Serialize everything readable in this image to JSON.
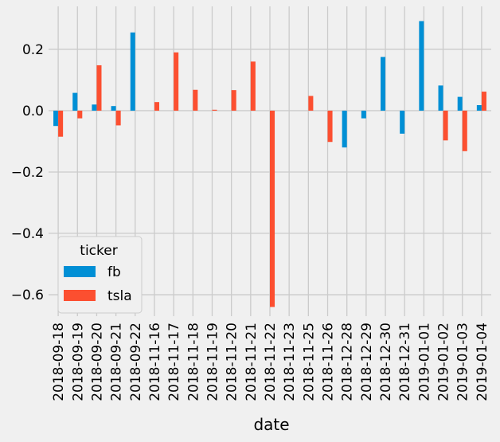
{
  "chart_data": {
    "type": "bar",
    "xlabel": "date",
    "ylabel": "",
    "ylim": [
      -0.67,
      0.34
    ],
    "yticks": [
      0.2,
      0.0,
      -0.2,
      -0.4,
      -0.6
    ],
    "ytick_labels": [
      "0.2",
      "0.0",
      "−0.2",
      "−0.4",
      "−0.6"
    ],
    "grid": true,
    "legend": {
      "title": "ticker",
      "placement": "lower-left"
    },
    "categories": [
      "2018-09-18",
      "2018-09-19",
      "2018-09-20",
      "2018-09-21",
      "2018-09-22",
      "2018-11-16",
      "2018-11-17",
      "2018-11-18",
      "2018-11-19",
      "2018-11-20",
      "2018-11-21",
      "2018-11-22",
      "2018-11-23",
      "2018-11-25",
      "2018-11-26",
      "2018-12-28",
      "2018-12-29",
      "2018-12-30",
      "2018-12-31",
      "2019-01-01",
      "2019-01-02",
      "2019-01-03",
      "2019-01-04"
    ],
    "series": [
      {
        "name": "fb",
        "color": "#008fd5",
        "values": [
          -0.05,
          0.058,
          0.02,
          0.015,
          0.255,
          0,
          0,
          0,
          0,
          0,
          0,
          0,
          0,
          0,
          0,
          -0.12,
          -0.025,
          0.175,
          -0.075,
          0.292,
          0.082,
          0.045,
          0.018
        ]
      },
      {
        "name": "tsla",
        "color": "#fc4f30",
        "values": [
          -0.085,
          -0.025,
          0.148,
          -0.048,
          0,
          0.028,
          0.19,
          0.068,
          0.003,
          0.067,
          0.16,
          -0.64,
          0,
          0.048,
          -0.102,
          0,
          0,
          0,
          0,
          0,
          -0.097,
          -0.132,
          0.062
        ]
      }
    ]
  }
}
